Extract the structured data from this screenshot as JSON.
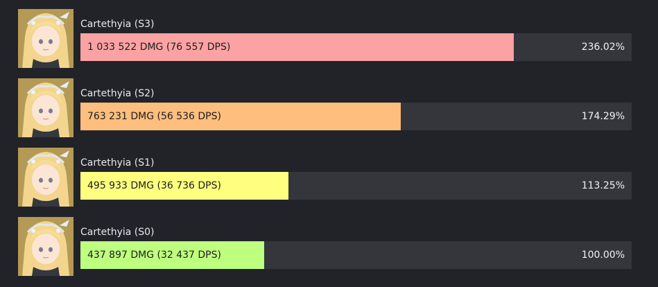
{
  "chart_data": {
    "type": "bar",
    "orientation": "horizontal",
    "categories": [
      "Cartethyia (S3)",
      "Cartethyia (S2)",
      "Cartethyia (S1)",
      "Cartethyia (S0)"
    ],
    "values": [
      236.02,
      174.29,
      113.25,
      100.0
    ],
    "xlim": [
      0,
      300
    ],
    "bar_labels": [
      "1 033 522 DMG (76 557 DPS)",
      "763 231 DMG (56 536 DPS)",
      "495 933 DMG (36 736 DPS)",
      "437 897 DMG (32 437 DPS)"
    ],
    "value_labels": [
      "236.02%",
      "174.29%",
      "113.25%",
      "100.00%"
    ],
    "bar_colors": [
      "#fba2a2",
      "#fdbe7e",
      "#ffff7f",
      "#bfff7f"
    ],
    "track_color": "#34363c",
    "background_color": "#222328",
    "avatar_icon": "character-portrait-icon"
  }
}
